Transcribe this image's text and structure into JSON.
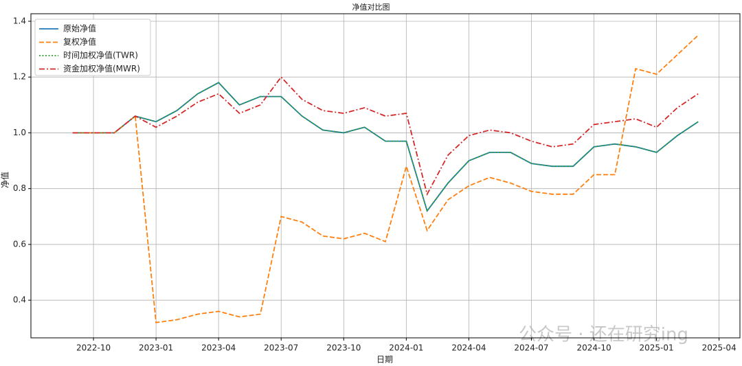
{
  "chart_data": {
    "type": "line",
    "title": "净值对比图",
    "xlabel": "日期",
    "ylabel": "净值",
    "x": [
      "2022-09",
      "2022-10",
      "2022-11",
      "2022-12",
      "2023-01",
      "2023-02",
      "2023-03",
      "2023-04",
      "2023-05",
      "2023-06",
      "2023-07",
      "2023-08",
      "2023-09",
      "2023-10",
      "2023-11",
      "2023-12",
      "2024-01",
      "2024-02",
      "2024-03",
      "2024-04",
      "2024-05",
      "2024-06",
      "2024-07",
      "2024-08",
      "2024-09",
      "2024-10",
      "2024-11",
      "2024-12",
      "2025-01",
      "2025-02",
      "2025-03"
    ],
    "series": [
      {
        "name": "原始净值",
        "color": "#1f77b4",
        "style": "solid",
        "values": [
          1.0,
          1.0,
          1.0,
          1.06,
          1.04,
          1.08,
          1.14,
          1.18,
          1.1,
          1.13,
          1.13,
          1.06,
          1.01,
          1.0,
          1.02,
          0.97,
          0.97,
          0.72,
          0.82,
          0.9,
          0.93,
          0.93,
          0.89,
          0.88,
          0.88,
          0.95,
          0.96,
          0.95,
          0.93,
          0.99,
          1.04
        ]
      },
      {
        "name": "复权净值",
        "color": "#ff7f0e",
        "style": "dashed",
        "values": [
          1.0,
          1.0,
          1.0,
          1.06,
          0.32,
          0.33,
          0.35,
          0.36,
          0.34,
          0.35,
          0.7,
          0.68,
          0.63,
          0.62,
          0.64,
          0.61,
          0.88,
          0.65,
          0.76,
          0.81,
          0.84,
          0.82,
          0.79,
          0.78,
          0.78,
          0.85,
          0.85,
          1.23,
          1.21,
          1.28,
          1.35
        ]
      },
      {
        "name": "时间加权净值(TWR)",
        "color": "#2ca02c",
        "style": "dotted",
        "values": [
          1.0,
          1.0,
          1.0,
          1.06,
          1.04,
          1.08,
          1.14,
          1.18,
          1.1,
          1.13,
          1.13,
          1.06,
          1.01,
          1.0,
          1.02,
          0.97,
          0.97,
          0.72,
          0.82,
          0.9,
          0.93,
          0.93,
          0.89,
          0.88,
          0.88,
          0.95,
          0.96,
          0.95,
          0.93,
          0.99,
          1.04
        ]
      },
      {
        "name": "资金加权净值(MWR)",
        "color": "#d62728",
        "style": "dashdot",
        "values": [
          1.0,
          1.0,
          1.0,
          1.06,
          1.02,
          1.06,
          1.11,
          1.14,
          1.07,
          1.1,
          1.2,
          1.12,
          1.08,
          1.07,
          1.09,
          1.06,
          1.07,
          0.78,
          0.92,
          0.99,
          1.01,
          1.0,
          0.97,
          0.95,
          0.96,
          1.03,
          1.04,
          1.05,
          1.02,
          1.09,
          1.14
        ]
      }
    ],
    "xlim": [
      "2022-07",
      "2025-05"
    ],
    "xticks": [
      "2022-10",
      "2023-01",
      "2023-04",
      "2023-07",
      "2023-10",
      "2024-01",
      "2024-04",
      "2024-07",
      "2024-10",
      "2025-01",
      "2025-04"
    ],
    "ylim": [
      0.265,
      1.427
    ],
    "yticks": [
      0.4,
      0.6,
      0.8,
      {
        "value": 1,
        "label": "1.0"
      },
      1.2,
      1.4
    ],
    "grid": true,
    "legend": "upper left",
    "watermark": "公众号 · 还在研究ing"
  }
}
